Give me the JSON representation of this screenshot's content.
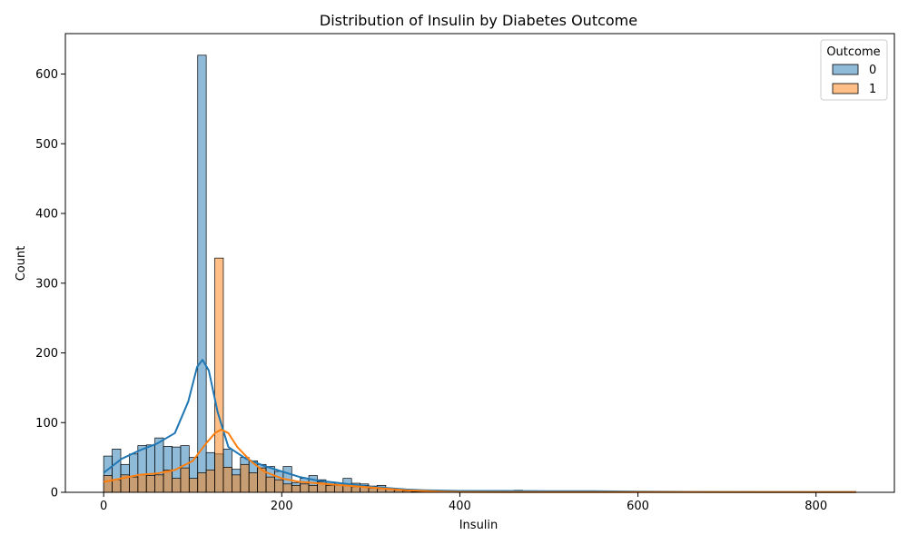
{
  "chart_data": {
    "type": "bar",
    "title": "Distribution of Insulin by Diabetes Outcome",
    "xlabel": "Insulin",
    "ylabel": "Count",
    "xlim": [
      -43,
      888
    ],
    "ylim": [
      0,
      658
    ],
    "x_ticks": [
      0,
      200,
      400,
      600,
      800
    ],
    "x_tick_labels": [
      "0",
      "200",
      "400",
      "600",
      "800"
    ],
    "y_ticks": [
      0,
      100,
      200,
      300,
      400,
      500,
      600
    ],
    "y_tick_labels": [
      "0",
      "100",
      "200",
      "300",
      "400",
      "500",
      "600"
    ],
    "grid": false,
    "legend": {
      "title": "Outcome",
      "placement": "top-right"
    },
    "bin_start": 0,
    "bin_width": 9.6,
    "series": [
      {
        "name": "0",
        "color": "#1f77b4",
        "values": [
          52,
          62,
          40,
          55,
          67,
          68,
          78,
          66,
          65,
          67,
          50,
          627,
          57,
          55,
          62,
          33,
          50,
          45,
          40,
          37,
          30,
          37,
          14,
          20,
          24,
          18,
          15,
          13,
          20,
          13,
          12,
          9,
          10,
          6,
          3,
          2,
          3,
          2,
          2,
          1,
          1,
          2,
          1,
          1,
          1,
          1,
          1,
          1,
          3,
          1,
          1,
          1,
          1,
          1,
          1,
          1,
          2,
          1,
          1,
          1,
          1,
          1,
          1,
          1,
          1,
          1,
          1,
          1,
          1,
          1,
          1,
          1,
          1,
          1,
          1,
          1,
          1,
          1,
          1,
          1,
          1,
          1,
          1,
          1,
          1,
          1,
          1,
          1
        ],
        "kde": [
          [
            0,
            28
          ],
          [
            20,
            48
          ],
          [
            40,
            60
          ],
          [
            60,
            70
          ],
          [
            80,
            85
          ],
          [
            95,
            130
          ],
          [
            105,
            180
          ],
          [
            111,
            190
          ],
          [
            118,
            175
          ],
          [
            128,
            115
          ],
          [
            140,
            65
          ],
          [
            160,
            48
          ],
          [
            180,
            38
          ],
          [
            200,
            30
          ],
          [
            220,
            22
          ],
          [
            240,
            17
          ],
          [
            260,
            14
          ],
          [
            280,
            11
          ],
          [
            300,
            8
          ],
          [
            320,
            6
          ],
          [
            340,
            4
          ],
          [
            360,
            3
          ],
          [
            380,
            2.5
          ],
          [
            400,
            2
          ],
          [
            450,
            2
          ],
          [
            500,
            1.5
          ],
          [
            550,
            1.5
          ],
          [
            600,
            1
          ],
          [
            700,
            0.5
          ],
          [
            845,
            0.3
          ]
        ]
      },
      {
        "name": "1",
        "color": "#ff7f0e",
        "values": [
          24,
          18,
          25,
          22,
          25,
          24,
          25,
          32,
          20,
          35,
          20,
          28,
          32,
          336,
          36,
          25,
          40,
          28,
          35,
          22,
          18,
          12,
          10,
          12,
          10,
          15,
          10,
          10,
          12,
          8,
          10,
          6,
          5,
          6,
          3,
          2,
          1,
          1,
          1,
          0,
          0,
          0,
          0,
          0,
          0,
          0,
          0,
          0,
          0,
          0,
          0,
          0,
          0,
          0,
          0,
          0,
          0,
          0,
          0,
          0,
          0,
          0,
          0,
          0,
          0,
          0,
          0,
          0,
          0,
          0,
          0,
          0,
          0,
          0,
          0,
          0,
          0,
          0,
          0,
          0,
          0,
          0,
          0,
          0,
          0,
          0,
          0,
          0
        ],
        "kde": [
          [
            0,
            15
          ],
          [
            20,
            20
          ],
          [
            40,
            25
          ],
          [
            60,
            27
          ],
          [
            80,
            32
          ],
          [
            100,
            45
          ],
          [
            115,
            70
          ],
          [
            125,
            85
          ],
          [
            132,
            90
          ],
          [
            140,
            85
          ],
          [
            150,
            65
          ],
          [
            165,
            45
          ],
          [
            180,
            30
          ],
          [
            200,
            20
          ],
          [
            220,
            15
          ],
          [
            240,
            13
          ],
          [
            260,
            11
          ],
          [
            280,
            9
          ],
          [
            300,
            7
          ],
          [
            320,
            5
          ],
          [
            340,
            3
          ],
          [
            360,
            2
          ],
          [
            380,
            1
          ],
          [
            400,
            0.5
          ],
          [
            450,
            0.3
          ],
          [
            845,
            0.2
          ]
        ]
      }
    ]
  }
}
